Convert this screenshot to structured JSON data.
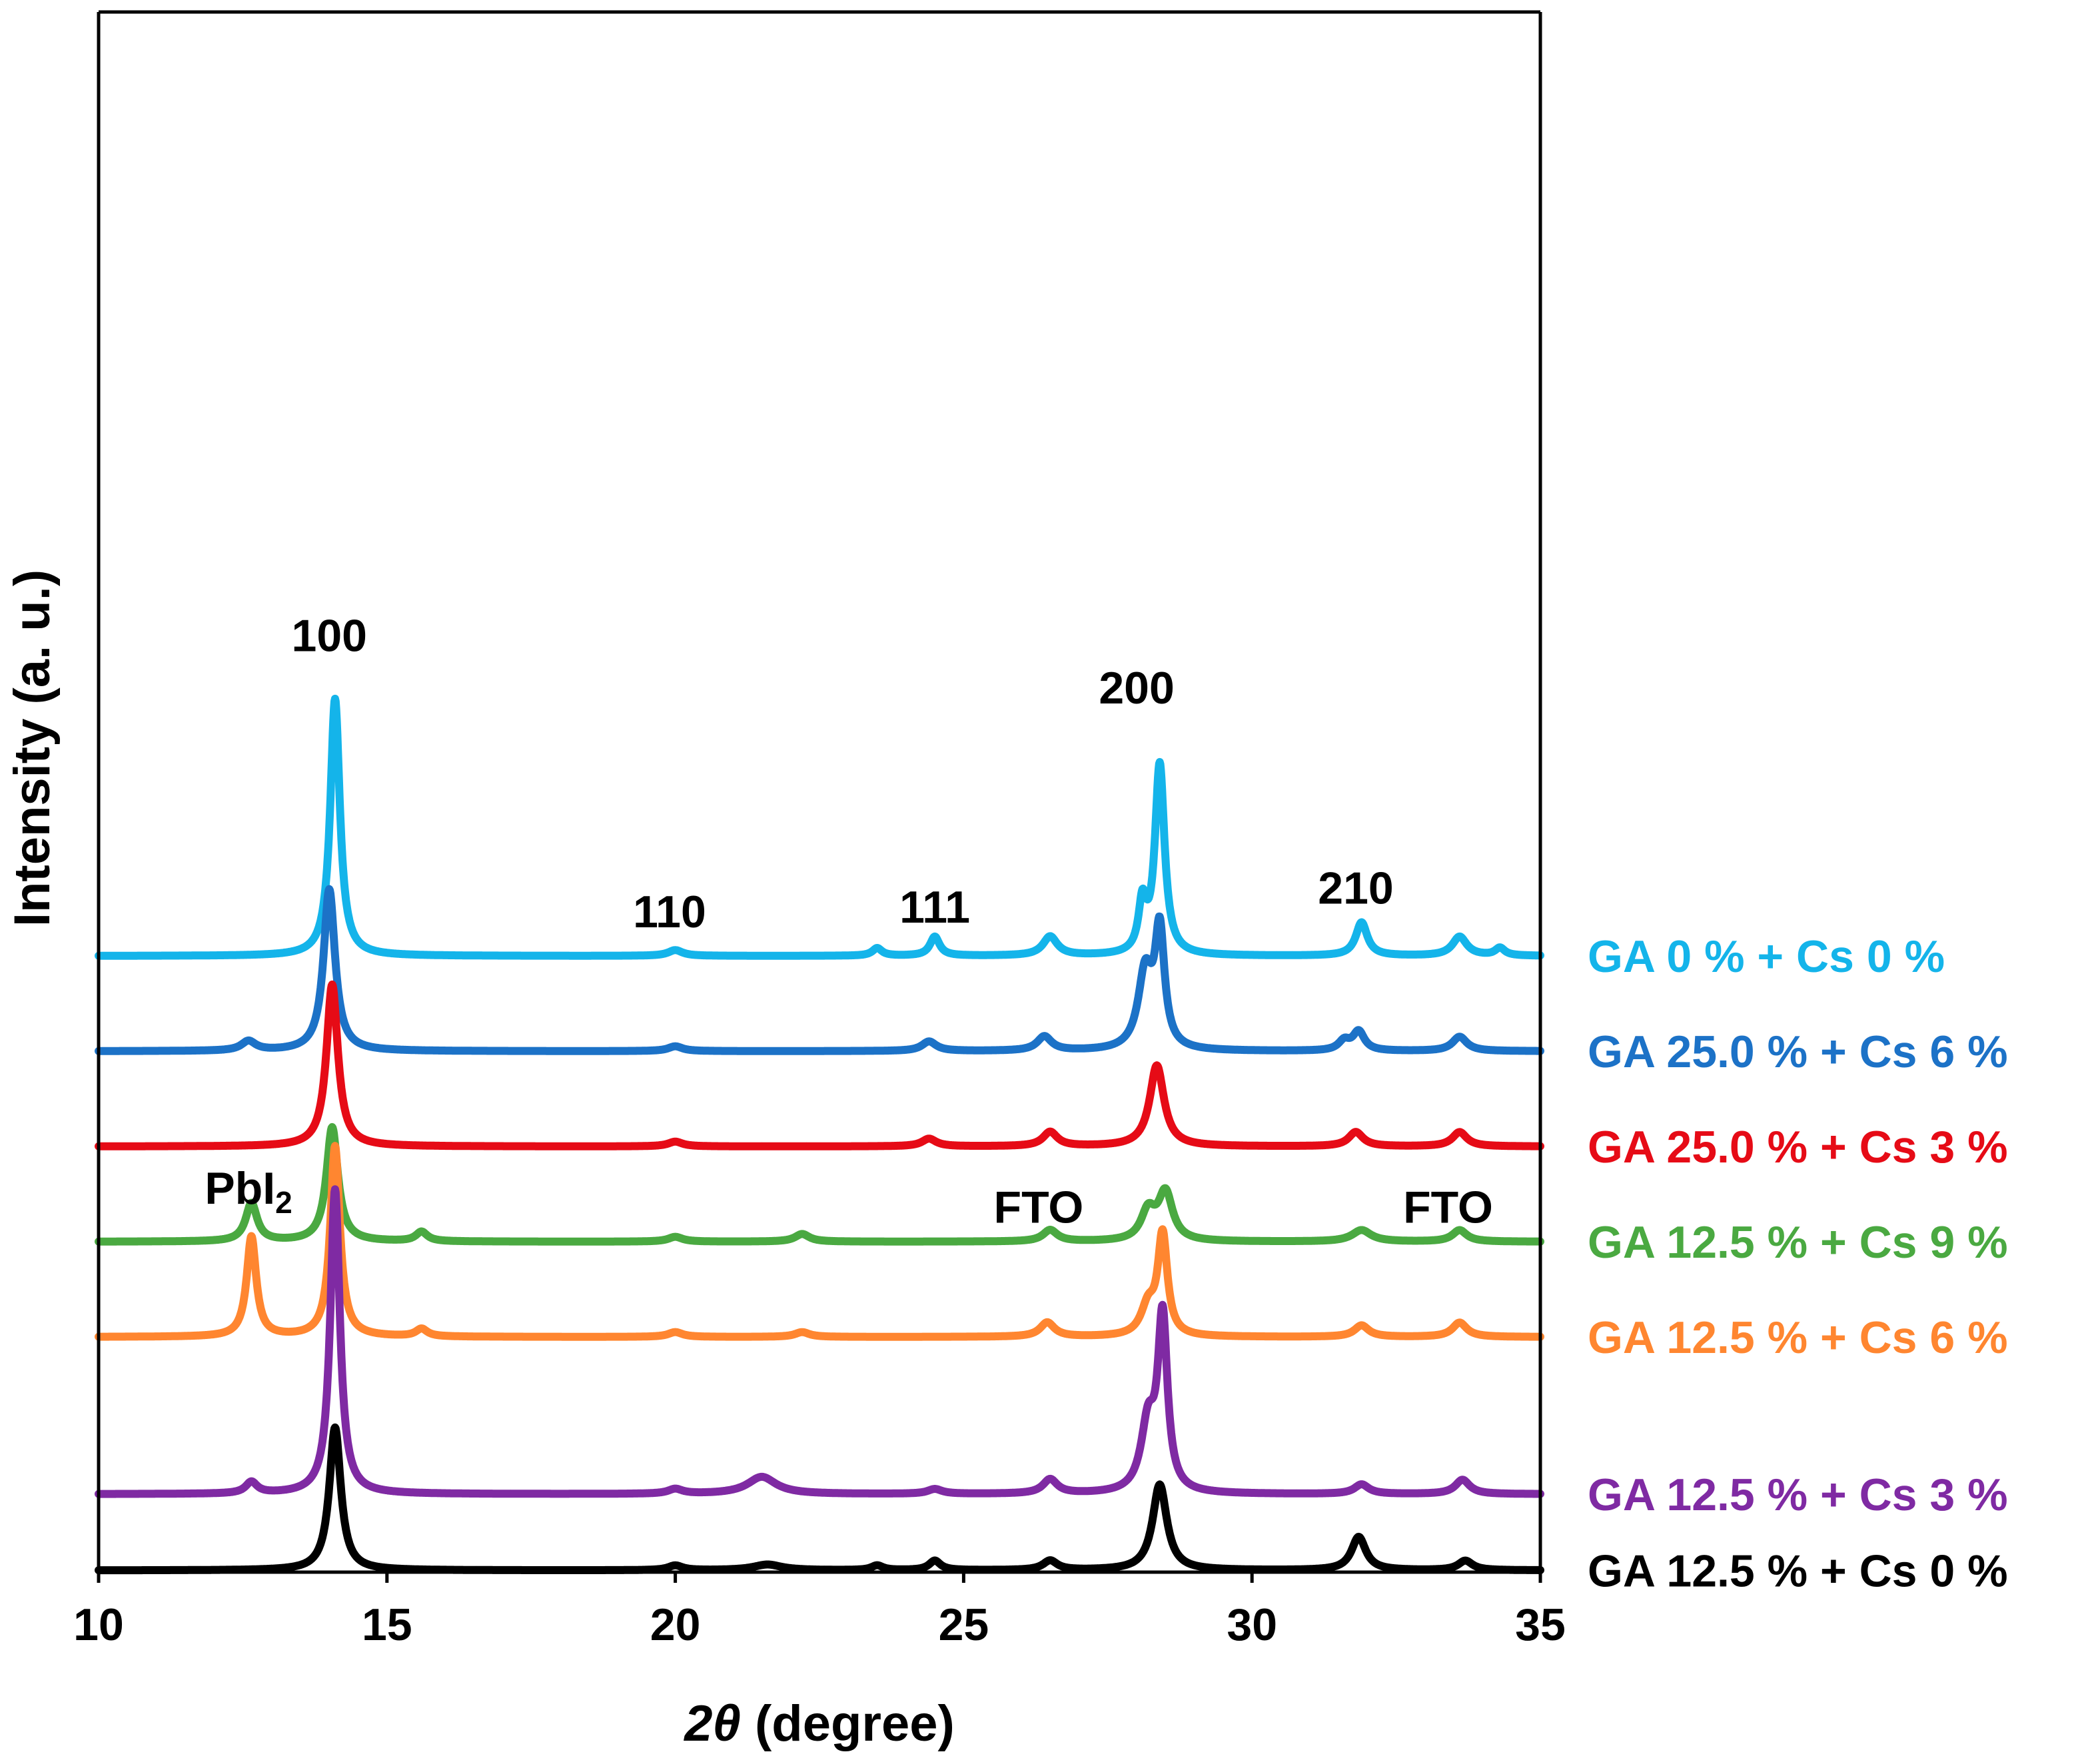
{
  "chart_data": {
    "type": "line",
    "title": "",
    "xlabel_italic": "2θ",
    "xlabel_rest": " (degree)",
    "ylabel": "Intensity (a. u.)",
    "xlim": [
      10,
      35
    ],
    "xticks": [
      10,
      15,
      20,
      25,
      30,
      35
    ],
    "yticks_shown": false,
    "grid": false,
    "legend": "right, labels beside each trace",
    "series": [
      {
        "name": "GA 0 % + Cs 0 %",
        "color": "#14b4ea",
        "baseline": 6.0,
        "peaks": [
          [
            14.1,
            2.7,
            0.1
          ],
          [
            20.0,
            0.06,
            0.15
          ],
          [
            23.5,
            0.08,
            0.1
          ],
          [
            24.5,
            0.2,
            0.1
          ],
          [
            26.5,
            0.2,
            0.15
          ],
          [
            28.1,
            0.5,
            0.08
          ],
          [
            28.4,
            2.0,
            0.1
          ],
          [
            31.9,
            0.35,
            0.12
          ],
          [
            33.6,
            0.2,
            0.15
          ],
          [
            34.3,
            0.08,
            0.1
          ]
        ]
      },
      {
        "name": "GA 25.0 % + Cs 6 %",
        "color": "#1c72c7",
        "baseline": 5.0,
        "peaks": [
          [
            12.6,
            0.1,
            0.15
          ],
          [
            14.0,
            1.7,
            0.12
          ],
          [
            20.0,
            0.05,
            0.15
          ],
          [
            24.4,
            0.1,
            0.15
          ],
          [
            26.4,
            0.15,
            0.15
          ],
          [
            28.15,
            0.8,
            0.15
          ],
          [
            28.4,
            1.2,
            0.1
          ],
          [
            31.6,
            0.1,
            0.12
          ],
          [
            31.85,
            0.2,
            0.12
          ],
          [
            33.6,
            0.15,
            0.15
          ]
        ]
      },
      {
        "name": "GA 25.0 % + Cs 3 %",
        "color": "#e60b16",
        "baseline": 4.0,
        "peaks": [
          [
            14.05,
            1.7,
            0.12
          ],
          [
            20.0,
            0.05,
            0.15
          ],
          [
            24.4,
            0.08,
            0.15
          ],
          [
            26.5,
            0.15,
            0.15
          ],
          [
            28.35,
            0.85,
            0.15
          ],
          [
            31.8,
            0.15,
            0.15
          ],
          [
            33.6,
            0.15,
            0.15
          ]
        ]
      },
      {
        "name": "GA 12.5 % + Cs 9 %",
        "color": "#4aa941",
        "baseline": 3.0,
        "peaks": [
          [
            12.65,
            0.4,
            0.12
          ],
          [
            14.05,
            1.2,
            0.12
          ],
          [
            15.6,
            0.1,
            0.12
          ],
          [
            20.0,
            0.05,
            0.15
          ],
          [
            22.2,
            0.08,
            0.15
          ],
          [
            26.5,
            0.12,
            0.15
          ],
          [
            28.2,
            0.3,
            0.15
          ],
          [
            28.5,
            0.5,
            0.15
          ],
          [
            31.9,
            0.12,
            0.2
          ],
          [
            33.6,
            0.12,
            0.15
          ]
        ]
      },
      {
        "name": "GA 12.5 % + Cs 6 %",
        "color": "#ff8630",
        "baseline": 2.0,
        "peaks": [
          [
            12.65,
            1.05,
            0.1
          ],
          [
            14.1,
            2.0,
            0.1
          ],
          [
            15.6,
            0.08,
            0.12
          ],
          [
            20.0,
            0.05,
            0.15
          ],
          [
            22.2,
            0.05,
            0.15
          ],
          [
            26.45,
            0.15,
            0.15
          ],
          [
            28.2,
            0.3,
            0.15
          ],
          [
            28.45,
            1.05,
            0.1
          ],
          [
            31.9,
            0.12,
            0.15
          ],
          [
            33.6,
            0.15,
            0.15
          ]
        ]
      },
      {
        "name": "GA 12.5 % + Cs 3 %",
        "color": "#7f2aa3",
        "baseline": 0.35,
        "peaks": [
          [
            12.65,
            0.12,
            0.12
          ],
          [
            14.1,
            3.2,
            0.1
          ],
          [
            20.0,
            0.05,
            0.15
          ],
          [
            21.5,
            0.18,
            0.3
          ],
          [
            24.5,
            0.05,
            0.15
          ],
          [
            26.5,
            0.15,
            0.15
          ],
          [
            28.2,
            0.7,
            0.15
          ],
          [
            28.45,
            1.8,
            0.1
          ],
          [
            31.9,
            0.1,
            0.15
          ],
          [
            33.65,
            0.15,
            0.15
          ]
        ]
      },
      {
        "name": "GA 12.5 % + Cs 0 %",
        "color": "#000000",
        "baseline": -0.45,
        "peaks": [
          [
            14.1,
            1.5,
            0.12
          ],
          [
            20.0,
            0.05,
            0.15
          ],
          [
            21.6,
            0.06,
            0.3
          ],
          [
            23.5,
            0.05,
            0.12
          ],
          [
            24.5,
            0.1,
            0.12
          ],
          [
            26.5,
            0.1,
            0.15
          ],
          [
            28.4,
            0.9,
            0.15
          ],
          [
            31.85,
            0.35,
            0.15
          ],
          [
            33.7,
            0.1,
            0.15
          ]
        ]
      }
    ],
    "annotations": [
      {
        "text": "100",
        "x": 14.0,
        "y": 9.2
      },
      {
        "text": "110",
        "x": 19.9,
        "y": 6.3
      },
      {
        "text": "111",
        "x": 24.5,
        "y": 6.35
      },
      {
        "text": "200",
        "x": 28.0,
        "y": 8.65
      },
      {
        "text": "210",
        "x": 31.8,
        "y": 6.55
      },
      {
        "text": "PbI",
        "subscript": "2",
        "x": 12.6,
        "y": 3.4
      },
      {
        "text": "FTO",
        "x": 26.3,
        "y": 3.2
      },
      {
        "text": "FTO",
        "x": 33.4,
        "y": 3.2
      }
    ]
  }
}
